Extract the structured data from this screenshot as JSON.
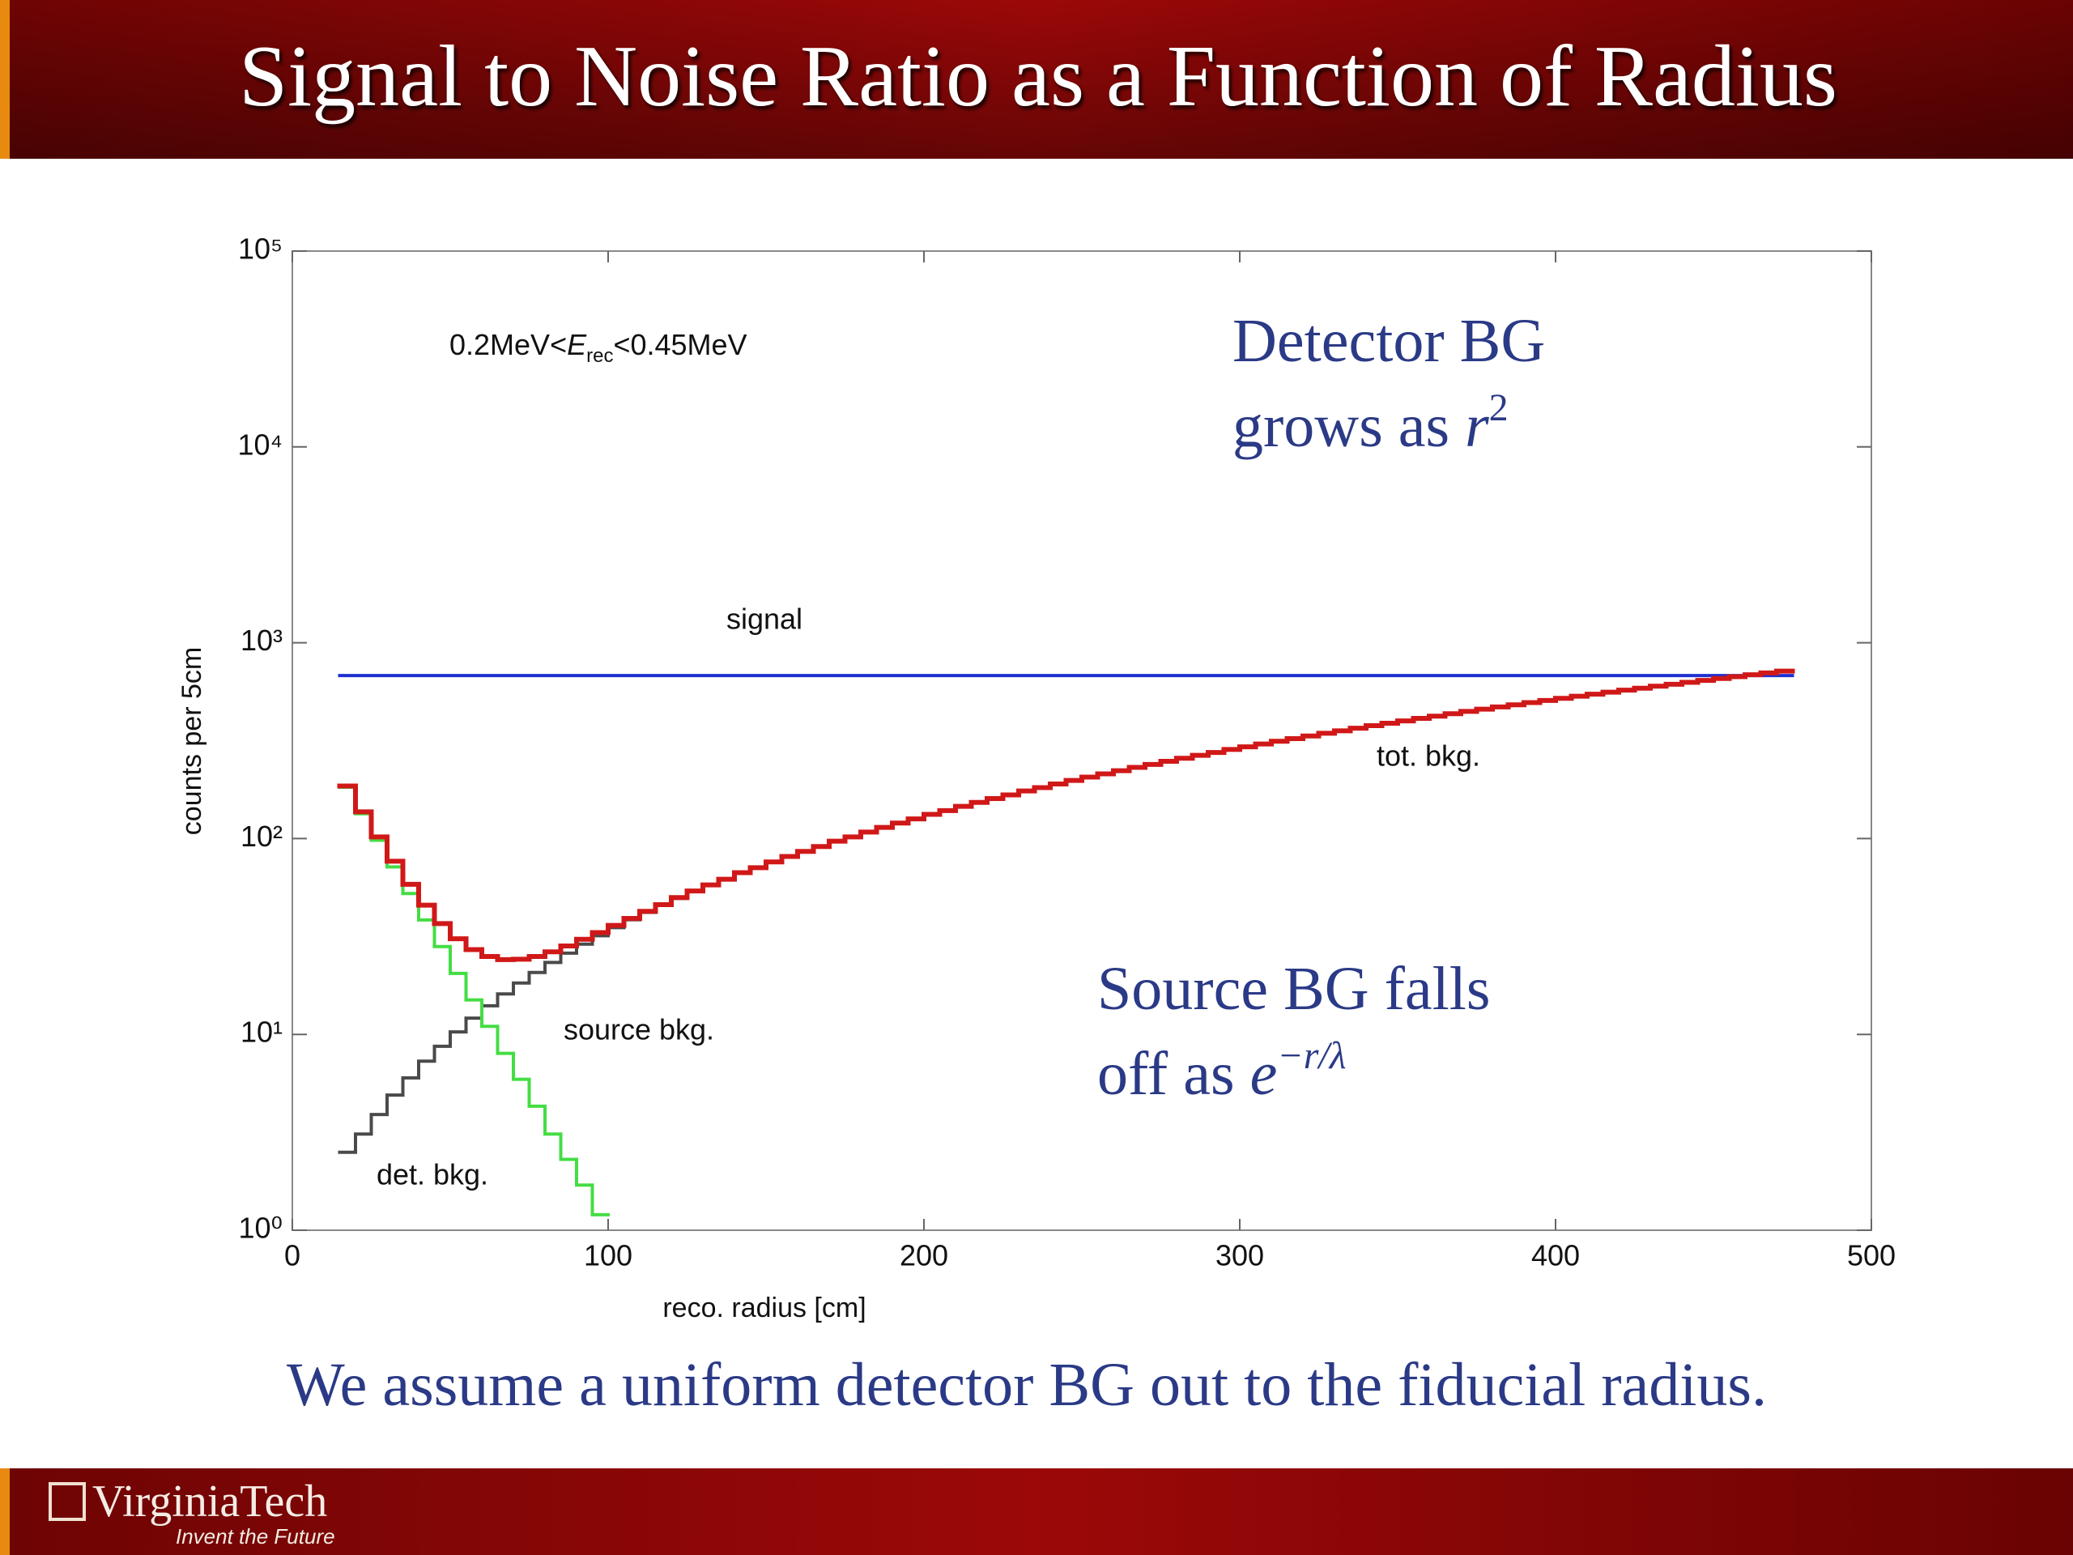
{
  "slide": {
    "title": "Signal to Noise Ratio as a Function of Radius",
    "caption": "We assume a uniform detector BG out to the fiducial radius.",
    "logo": "VirginiaTech",
    "tagline": "Invent the Future"
  },
  "chart_data": {
    "type": "step",
    "log_y": true,
    "xlabel": "reco. radius [cm]",
    "ylabel": "counts per 5cm",
    "xlim": [
      0,
      500
    ],
    "xticks": [
      0,
      100,
      200,
      300,
      400,
      500
    ],
    "ylim": [
      1,
      100000
    ],
    "yticks": [
      {
        "value": 1,
        "label": "10⁰"
      },
      {
        "value": 10,
        "label": "10¹"
      },
      {
        "value": 100,
        "label": "10²"
      },
      {
        "value": 1000,
        "label": "10³"
      },
      {
        "value": 10000,
        "label": "10⁴"
      },
      {
        "value": 100000,
        "label": "10⁵"
      }
    ],
    "energy_range": {
      "before": "0.2MeV<",
      "var": "E",
      "sub": "rec",
      "after": "<0.45MeV"
    },
    "detector_note": {
      "line1": "Detector BG",
      "line2": "grows as ",
      "var": "r",
      "sup": "2"
    },
    "source_note": {
      "line1": "Source BG falls",
      "line2": "off as ",
      "var": "e",
      "sup": "−r/λ"
    },
    "series": [
      {
        "name": "det. bkg.",
        "color": "#4a4a4a",
        "bins": [
          15,
          20,
          25,
          30,
          35,
          40,
          45,
          50,
          55,
          60,
          65,
          70,
          75,
          80,
          85,
          90,
          95,
          100,
          105,
          110,
          115,
          120,
          125,
          130,
          135,
          140,
          145,
          150,
          155,
          160,
          165,
          170,
          175,
          180,
          185,
          190,
          195,
          200,
          205,
          210,
          215,
          220,
          225,
          230,
          235,
          240,
          245,
          250,
          255,
          260,
          265,
          270,
          275,
          280,
          285,
          290,
          295,
          300,
          305,
          310,
          315,
          320,
          325,
          330,
          335,
          340,
          345,
          350,
          355,
          360,
          365,
          370,
          375,
          380,
          385,
          390,
          395,
          400,
          405,
          410,
          415,
          420,
          425,
          430,
          435,
          440,
          445,
          450,
          455,
          460,
          465,
          470,
          475
        ],
        "values": [
          2.5,
          3.1,
          3.9,
          4.9,
          6,
          7.3,
          8.7,
          10.3,
          12.1,
          14,
          16.1,
          18.3,
          20.7,
          23.3,
          26,
          28.9,
          31.9,
          35.1,
          38.5,
          42,
          45.7,
          49.5,
          54,
          58,
          62,
          67,
          71,
          76,
          81,
          86,
          91,
          97,
          102,
          108,
          114,
          120,
          126,
          133,
          139,
          146,
          153,
          160,
          167,
          175,
          182,
          190,
          198,
          206,
          214,
          222,
          231,
          239,
          248,
          257,
          266,
          275,
          285,
          294,
          304,
          314,
          324,
          334,
          345,
          355,
          366,
          377,
          388,
          399,
          411,
          422,
          434,
          446,
          458,
          470,
          482,
          495,
          507,
          520,
          533,
          546,
          559,
          573,
          586,
          600,
          614,
          628,
          642,
          657,
          671,
          686,
          701,
          716
        ]
      },
      {
        "name": "source bkg.",
        "color": "#44dd44",
        "bins": [
          15,
          20,
          25,
          30,
          35,
          40,
          45,
          50,
          55,
          60,
          65,
          70,
          75,
          80,
          85,
          90,
          95,
          100
        ],
        "values": [
          183,
          133.9,
          98,
          71.7,
          52.4,
          38.4,
          28.1,
          20.5,
          15,
          11,
          8,
          5.9,
          4.3,
          3.1,
          2.3,
          1.7,
          1.2
        ]
      },
      {
        "name": "signal",
        "color": "#1f2fd0",
        "bins": [
          15,
          475
        ],
        "values": [
          680
        ]
      },
      {
        "name": "tot. bkg.",
        "color": "#d01818",
        "bins": [
          15,
          20,
          25,
          30,
          35,
          40,
          45,
          50,
          55,
          60,
          65,
          70,
          75,
          80,
          85,
          90,
          95,
          100,
          105,
          110,
          115,
          120,
          125,
          130,
          135,
          140,
          145,
          150,
          155,
          160,
          165,
          170,
          175,
          180,
          185,
          190,
          195,
          200,
          205,
          210,
          215,
          220,
          225,
          230,
          235,
          240,
          245,
          250,
          255,
          260,
          265,
          270,
          275,
          280,
          285,
          290,
          295,
          300,
          305,
          310,
          315,
          320,
          325,
          330,
          335,
          340,
          345,
          350,
          355,
          360,
          365,
          370,
          375,
          380,
          385,
          390,
          395,
          400,
          405,
          410,
          415,
          420,
          425,
          430,
          435,
          440,
          445,
          450,
          455,
          460,
          465,
          470,
          475
        ],
        "values": [
          185.5,
          137,
          101.9,
          76.6,
          58.4,
          45.7,
          36.8,
          30.8,
          27.1,
          25,
          24.1,
          24.2,
          25,
          26.4,
          28.3,
          30.6,
          33.1,
          36,
          39.1,
          42.5,
          46,
          50,
          54,
          58,
          62,
          67,
          71,
          76,
          81,
          86,
          91,
          97,
          102,
          108,
          114,
          120,
          126,
          133,
          139,
          146,
          153,
          160,
          167,
          175,
          182,
          190,
          198,
          206,
          214,
          222,
          231,
          239,
          248,
          257,
          266,
          275,
          285,
          294,
          304,
          314,
          324,
          334,
          345,
          355,
          366,
          377,
          388,
          399,
          411,
          422,
          434,
          446,
          458,
          470,
          482,
          495,
          507,
          520,
          533,
          546,
          559,
          573,
          586,
          600,
          614,
          628,
          642,
          657,
          671,
          686,
          701,
          716
        ]
      }
    ]
  }
}
